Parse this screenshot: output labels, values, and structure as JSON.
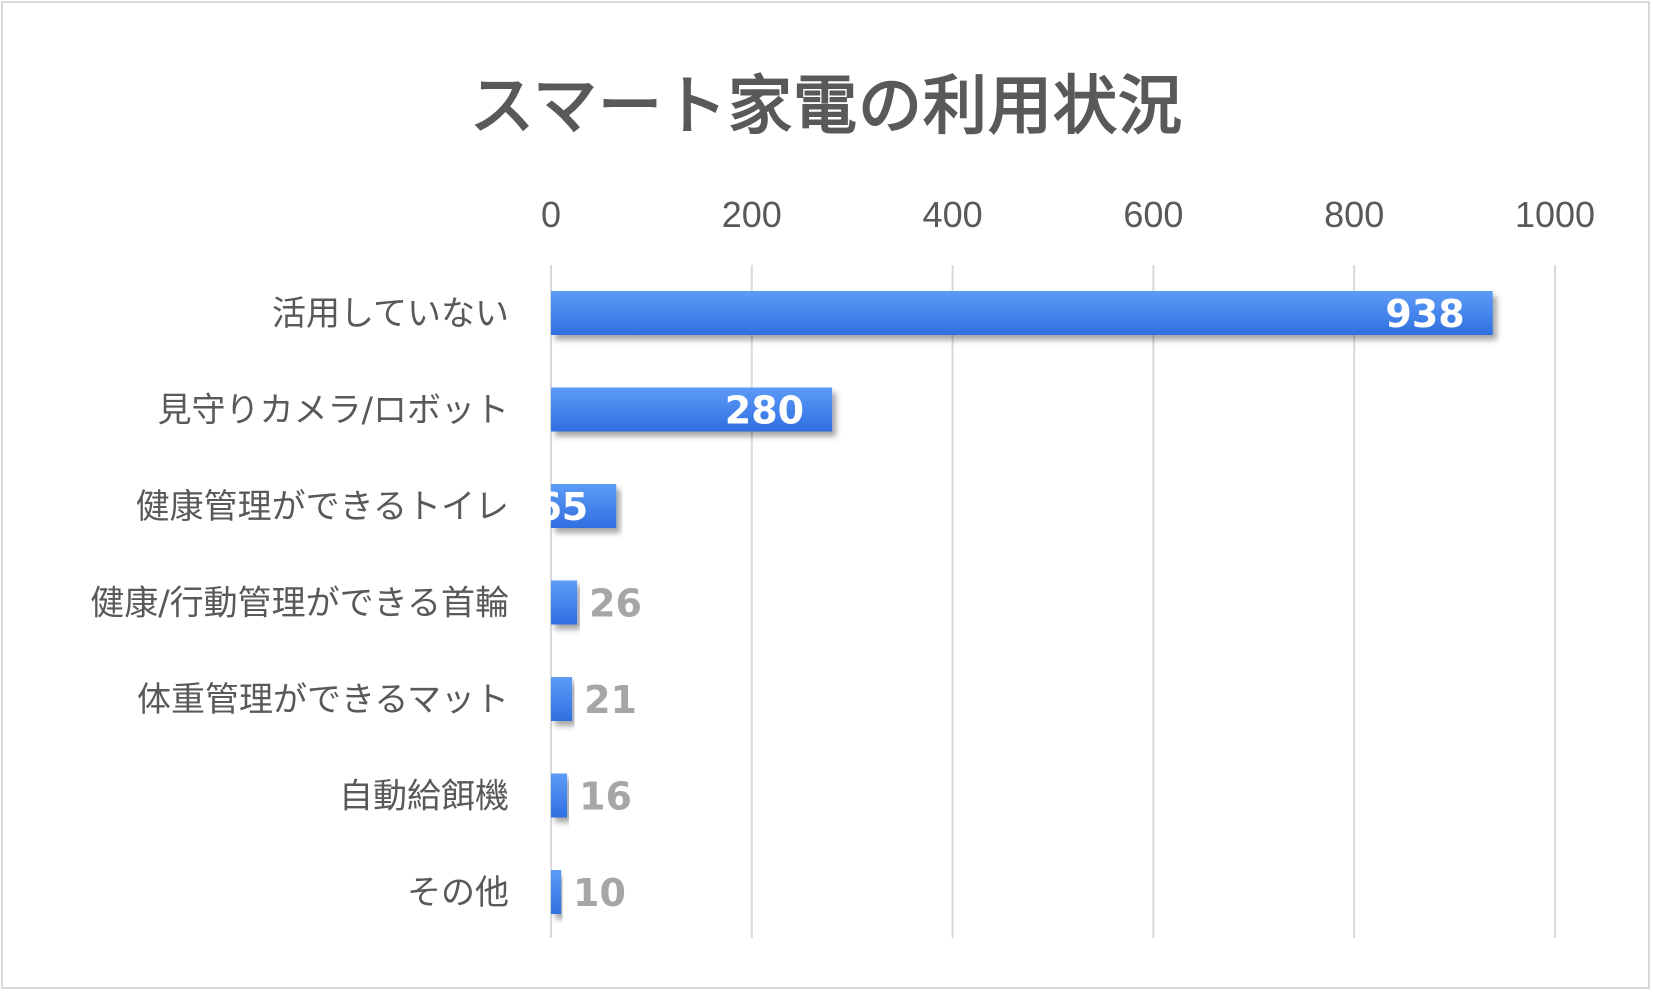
{
  "chart_data": {
    "type": "bar",
    "orientation": "horizontal",
    "title": "スマート家電の利用状況",
    "categories": [
      "活用していない",
      "見守りカメラ/ロボット",
      "健康管理ができるトイレ",
      "健康/行動管理ができる首輪",
      "体重管理ができるマット",
      "自動給餌機",
      "その他"
    ],
    "values": [
      938,
      280,
      65,
      26,
      21,
      16,
      10
    ],
    "xlim": [
      0,
      1000
    ],
    "ticks": [
      "0",
      "200",
      "400",
      "600",
      "800",
      "1000"
    ],
    "axis_position": "top",
    "grid": true,
    "legend": false,
    "colors": {
      "bar": "#4285f4",
      "bar_light": "#5d9bf7",
      "label_inside": "#ffffff",
      "label_outside": "#a6a6a6",
      "grid": "#d9d9d9",
      "text": "#595959"
    }
  }
}
